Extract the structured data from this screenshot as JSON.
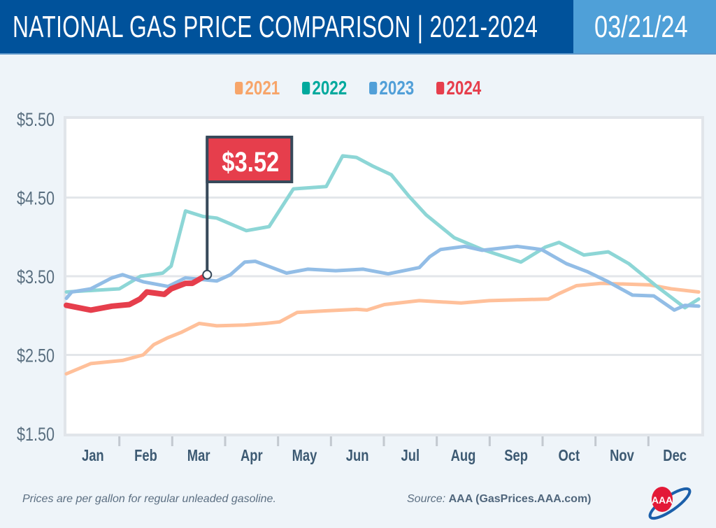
{
  "header": {
    "title": "NATIONAL GAS PRICE COMPARISON | 2021-2024",
    "date": "03/21/24",
    "colors": {
      "title_bg": "#00529b",
      "date_bg": "#4fa0d8"
    }
  },
  "footer": {
    "note": "Prices are per gallon for regular unleaded gasoline.",
    "source_label": "Source:",
    "source_name": "AAA (GasPrices.AAA.com)",
    "logo": "AAA"
  },
  "chart_data": {
    "type": "line",
    "title": "NATIONAL GAS PRICE COMPARISON | 2021-2024",
    "xlabel": "",
    "ylabel": "",
    "ylim": [
      1.5,
      5.5
    ],
    "y_ticks": [
      {
        "value": 5.5,
        "label": "$5.50"
      },
      {
        "value": 4.5,
        "label": "$4.50"
      },
      {
        "value": 3.5,
        "label": "$3.50"
      },
      {
        "value": 2.5,
        "label": "$2.50"
      },
      {
        "value": 1.5,
        "label": "$1.50"
      }
    ],
    "x_tick_labels": [
      "Jan",
      "Feb",
      "Mar",
      "Apr",
      "May",
      "Jun",
      "Jul",
      "Aug",
      "Sep",
      "Oct",
      "Nov",
      "Dec"
    ],
    "x_unit": "months since Jan 1",
    "grid": true,
    "legend_placement": "top-center",
    "series": [
      {
        "name": "2021",
        "color": "#ffc09a",
        "legend_color": "#f7a56a",
        "x": [
          0,
          0.46,
          1.06,
          1.45,
          1.65,
          1.92,
          2.18,
          2.51,
          2.84,
          3.37,
          3.76,
          4.03,
          4.36,
          4.89,
          5.48,
          5.68,
          6.01,
          6.67,
          7.46,
          7.99,
          9.11,
          9.31,
          9.64,
          10.11,
          11.03,
          11.43,
          11.95
        ],
        "y": [
          2.26,
          2.39,
          2.43,
          2.5,
          2.63,
          2.72,
          2.79,
          2.9,
          2.87,
          2.88,
          2.9,
          2.92,
          3.04,
          3.06,
          3.08,
          3.07,
          3.14,
          3.19,
          3.16,
          3.19,
          3.21,
          3.28,
          3.38,
          3.41,
          3.39,
          3.34,
          3.3
        ]
      },
      {
        "name": "2022",
        "color": "#8dd6d6",
        "legend_color": "#00a99d",
        "x": [
          0,
          1,
          1.4,
          1.82,
          1.98,
          2.25,
          2.58,
          2.84,
          3.4,
          3.83,
          4.29,
          4.91,
          5.22,
          5.48,
          5.79,
          6.14,
          6.47,
          6.8,
          7.33,
          7.86,
          8.59,
          9.05,
          9.31,
          9.78,
          10.24,
          10.63,
          11.16,
          11.69,
          11.95
        ],
        "y": [
          3.3,
          3.34,
          3.5,
          3.54,
          3.63,
          4.33,
          4.26,
          4.24,
          4.08,
          4.13,
          4.61,
          4.64,
          5.03,
          5.01,
          4.9,
          4.79,
          4.52,
          4.28,
          3.99,
          3.84,
          3.68,
          3.87,
          3.93,
          3.77,
          3.81,
          3.66,
          3.37,
          3.1,
          3.21
        ]
      },
      {
        "name": "2023",
        "color": "#92bde6",
        "legend_color": "#519fd8",
        "x": [
          0,
          0.1,
          0.46,
          0.86,
          1.06,
          1.45,
          1.92,
          2.25,
          2.84,
          3.1,
          3.37,
          3.57,
          4.16,
          4.56,
          5.09,
          5.61,
          6.08,
          6.67,
          6.87,
          7.07,
          7.53,
          7.86,
          8.52,
          8.98,
          9.45,
          9.84,
          10.24,
          10.7,
          11.1,
          11.49,
          11.69,
          11.95
        ],
        "y": [
          3.22,
          3.3,
          3.34,
          3.48,
          3.52,
          3.43,
          3.37,
          3.48,
          3.44,
          3.52,
          3.68,
          3.69,
          3.54,
          3.59,
          3.57,
          3.59,
          3.53,
          3.61,
          3.75,
          3.84,
          3.88,
          3.83,
          3.88,
          3.84,
          3.66,
          3.56,
          3.43,
          3.26,
          3.25,
          3.07,
          3.13,
          3.12
        ]
      },
      {
        "name": "2024",
        "color": "#e63e4c",
        "legend_color": "#e63e4c",
        "x": [
          0,
          0.46,
          0.86,
          1.19,
          1.39,
          1.52,
          1.85,
          1.98,
          2.25,
          2.38,
          2.66
        ],
        "y": [
          3.13,
          3.07,
          3.12,
          3.14,
          3.21,
          3.3,
          3.27,
          3.34,
          3.41,
          3.41,
          3.52
        ]
      }
    ],
    "annotation": {
      "label": "$3.52",
      "series": "2024",
      "x": 2.66,
      "y": 3.52,
      "bg": "#e63e4c",
      "border": "#37495a"
    }
  }
}
